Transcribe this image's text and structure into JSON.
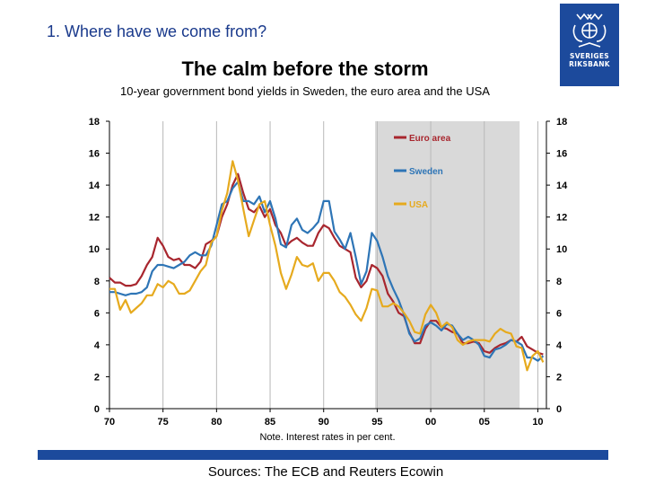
{
  "header": {
    "section_title": "1. Where have we come from?",
    "logo_text_1": "SVERIGES",
    "logo_text_2": "RIKSBANK"
  },
  "chart_data": {
    "type": "line",
    "title": "The calm before the storm",
    "subtitle": "10-year government bond yields in Sweden, the euro area and the USA",
    "xlabel": "",
    "ylabel": "",
    "xlim": [
      1970,
      2010.8
    ],
    "ylim": [
      0,
      18
    ],
    "x_ticks": [
      1970,
      1975,
      1980,
      1985,
      1990,
      1995,
      2000,
      2005,
      2010
    ],
    "x_tick_labels": [
      "70",
      "75",
      "80",
      "85",
      "90",
      "95",
      "00",
      "05",
      "10"
    ],
    "y_ticks": [
      0,
      2,
      4,
      6,
      8,
      10,
      12,
      14,
      16,
      18
    ],
    "y_tick_labels": [
      "0",
      "2",
      "4",
      "6",
      "8",
      "10",
      "12",
      "14",
      "16",
      "18"
    ],
    "grid": "vertical",
    "shaded_range": {
      "x": [
        1994.8,
        2008.3
      ],
      "color": "#d9d9d9"
    },
    "legend_position": "top-right",
    "series": [
      {
        "name": "Euro area",
        "color": "#a8262e",
        "x": [
          1970.0,
          1970.5,
          1971.0,
          1971.5,
          1972.0,
          1972.5,
          1973.0,
          1973.5,
          1974.0,
          1974.5,
          1975.0,
          1975.5,
          1976.0,
          1976.5,
          1977.0,
          1977.5,
          1978.0,
          1978.5,
          1979.0,
          1979.5,
          1980.0,
          1980.5,
          1981.0,
          1981.5,
          1982.0,
          1982.5,
          1983.0,
          1983.5,
          1984.0,
          1984.5,
          1985.0,
          1985.5,
          1986.0,
          1986.5,
          1987.0,
          1987.5,
          1988.0,
          1988.5,
          1989.0,
          1989.5,
          1990.0,
          1990.5,
          1991.0,
          1991.5,
          1992.0,
          1992.5,
          1993.0,
          1993.5,
          1994.0,
          1994.5,
          1995.0,
          1995.5,
          1996.0,
          1996.5,
          1997.0,
          1997.5,
          1998.0,
          1998.5,
          1999.0,
          1999.5,
          2000.0,
          2000.5,
          2001.0,
          2001.5,
          2002.0,
          2002.5,
          2003.0,
          2003.5,
          2004.0,
          2004.5,
          2005.0,
          2005.5,
          2006.0,
          2006.5,
          2007.0,
          2007.5,
          2008.0,
          2008.5,
          2009.0,
          2009.5,
          2010.0,
          2010.5
        ],
        "values": [
          8.2,
          7.9,
          7.9,
          7.7,
          7.7,
          7.8,
          8.3,
          9.0,
          9.5,
          10.7,
          10.2,
          9.5,
          9.3,
          9.4,
          9.0,
          9.0,
          8.8,
          9.2,
          10.3,
          10.5,
          10.8,
          12.0,
          12.8,
          14.0,
          14.7,
          13.5,
          12.5,
          12.3,
          12.7,
          12.0,
          12.5,
          11.5,
          11.0,
          10.2,
          10.5,
          10.7,
          10.4,
          10.2,
          10.2,
          11.0,
          11.5,
          11.3,
          10.7,
          10.2,
          10.0,
          9.8,
          8.2,
          7.6,
          8.0,
          9.0,
          8.8,
          8.3,
          7.2,
          6.7,
          6.0,
          5.8,
          4.8,
          4.1,
          4.1,
          5.0,
          5.5,
          5.5,
          5.1,
          5.0,
          4.8,
          4.7,
          4.1,
          4.1,
          4.2,
          4.1,
          3.6,
          3.5,
          3.8,
          4.0,
          4.1,
          4.3,
          4.2,
          4.5,
          3.9,
          3.7,
          3.5,
          3.4
        ]
      },
      {
        "name": "Sweden",
        "color": "#2e75b6",
        "x": [
          1970.0,
          1970.5,
          1971.0,
          1971.5,
          1972.0,
          1972.5,
          1973.0,
          1973.5,
          1974.0,
          1974.5,
          1975.0,
          1975.5,
          1976.0,
          1976.5,
          1977.0,
          1977.5,
          1978.0,
          1978.5,
          1979.0,
          1979.5,
          1980.0,
          1980.5,
          1981.0,
          1981.5,
          1982.0,
          1982.5,
          1983.0,
          1983.5,
          1984.0,
          1984.5,
          1985.0,
          1985.5,
          1986.0,
          1986.5,
          1987.0,
          1987.5,
          1988.0,
          1988.5,
          1989.0,
          1989.5,
          1990.0,
          1990.5,
          1991.0,
          1991.5,
          1992.0,
          1992.5,
          1993.0,
          1993.5,
          1994.0,
          1994.5,
          1995.0,
          1995.5,
          1996.0,
          1996.5,
          1997.0,
          1997.5,
          1998.0,
          1998.5,
          1999.0,
          1999.5,
          2000.0,
          2000.5,
          2001.0,
          2001.5,
          2002.0,
          2002.5,
          2003.0,
          2003.5,
          2004.0,
          2004.5,
          2005.0,
          2005.5,
          2006.0,
          2006.5,
          2007.0,
          2007.5,
          2008.0,
          2008.5,
          2009.0,
          2009.5,
          2010.0,
          2010.5
        ],
        "values": [
          7.3,
          7.3,
          7.2,
          7.1,
          7.2,
          7.2,
          7.3,
          7.6,
          8.6,
          9.0,
          9.0,
          8.9,
          8.8,
          9.0,
          9.2,
          9.6,
          9.8,
          9.6,
          9.6,
          10.2,
          11.5,
          12.8,
          13.0,
          13.8,
          14.2,
          13.0,
          13.0,
          12.8,
          13.3,
          12.3,
          13.0,
          11.9,
          10.3,
          10.1,
          11.5,
          11.9,
          11.2,
          11.0,
          11.3,
          11.7,
          13.0,
          13.0,
          11.1,
          10.6,
          10.0,
          11.0,
          9.5,
          7.8,
          8.6,
          11.0,
          10.5,
          9.5,
          8.3,
          7.5,
          6.8,
          5.9,
          4.7,
          4.2,
          4.4,
          5.2,
          5.4,
          5.2,
          4.9,
          5.3,
          5.2,
          4.7,
          4.3,
          4.5,
          4.3,
          4.0,
          3.3,
          3.2,
          3.7,
          3.8,
          4.0,
          4.3,
          4.2,
          4.0,
          3.2,
          3.2,
          3.0,
          3.3
        ]
      },
      {
        "name": "USA",
        "color": "#e6aa1e",
        "x": [
          1970.0,
          1970.5,
          1971.0,
          1971.5,
          1972.0,
          1972.5,
          1973.0,
          1973.5,
          1974.0,
          1974.5,
          1975.0,
          1975.5,
          1976.0,
          1976.5,
          1977.0,
          1977.5,
          1978.0,
          1978.5,
          1979.0,
          1979.5,
          1980.0,
          1980.5,
          1981.0,
          1981.5,
          1982.0,
          1982.5,
          1983.0,
          1983.5,
          1984.0,
          1984.5,
          1985.0,
          1985.5,
          1986.0,
          1986.5,
          1987.0,
          1987.5,
          1988.0,
          1988.5,
          1989.0,
          1989.5,
          1990.0,
          1990.5,
          1991.0,
          1991.5,
          1992.0,
          1992.5,
          1993.0,
          1993.5,
          1994.0,
          1994.5,
          1995.0,
          1995.5,
          1996.0,
          1996.5,
          1997.0,
          1997.5,
          1998.0,
          1998.5,
          1999.0,
          1999.5,
          2000.0,
          2000.5,
          2001.0,
          2001.5,
          2002.0,
          2002.5,
          2003.0,
          2003.5,
          2004.0,
          2004.5,
          2005.0,
          2005.5,
          2006.0,
          2006.5,
          2007.0,
          2007.5,
          2008.0,
          2008.5,
          2009.0,
          2009.5,
          2010.0,
          2010.5
        ],
        "values": [
          7.5,
          7.5,
          6.2,
          6.8,
          6.0,
          6.3,
          6.6,
          7.1,
          7.1,
          7.8,
          7.6,
          8.0,
          7.8,
          7.2,
          7.2,
          7.4,
          8.0,
          8.6,
          9.0,
          10.4,
          10.8,
          12.4,
          13.5,
          15.5,
          14.3,
          12.5,
          10.8,
          11.8,
          12.8,
          13.0,
          11.5,
          10.2,
          8.5,
          7.5,
          8.4,
          9.5,
          9.0,
          8.9,
          9.1,
          8.0,
          8.5,
          8.5,
          8.0,
          7.3,
          7.0,
          6.5,
          5.9,
          5.5,
          6.3,
          7.5,
          7.4,
          6.4,
          6.4,
          6.6,
          6.4,
          6.0,
          5.5,
          4.8,
          4.7,
          5.9,
          6.5,
          6.0,
          5.1,
          5.4,
          5.1,
          4.3,
          4.0,
          4.2,
          4.3,
          4.3,
          4.3,
          4.2,
          4.7,
          5.0,
          4.8,
          4.7,
          3.9,
          3.8,
          2.4,
          3.3,
          3.6,
          2.9
        ]
      }
    ]
  },
  "footer": {
    "note": "Note. Interest rates in per cent.",
    "sources": "Sources: The ECB and Reuters Ecowin"
  }
}
